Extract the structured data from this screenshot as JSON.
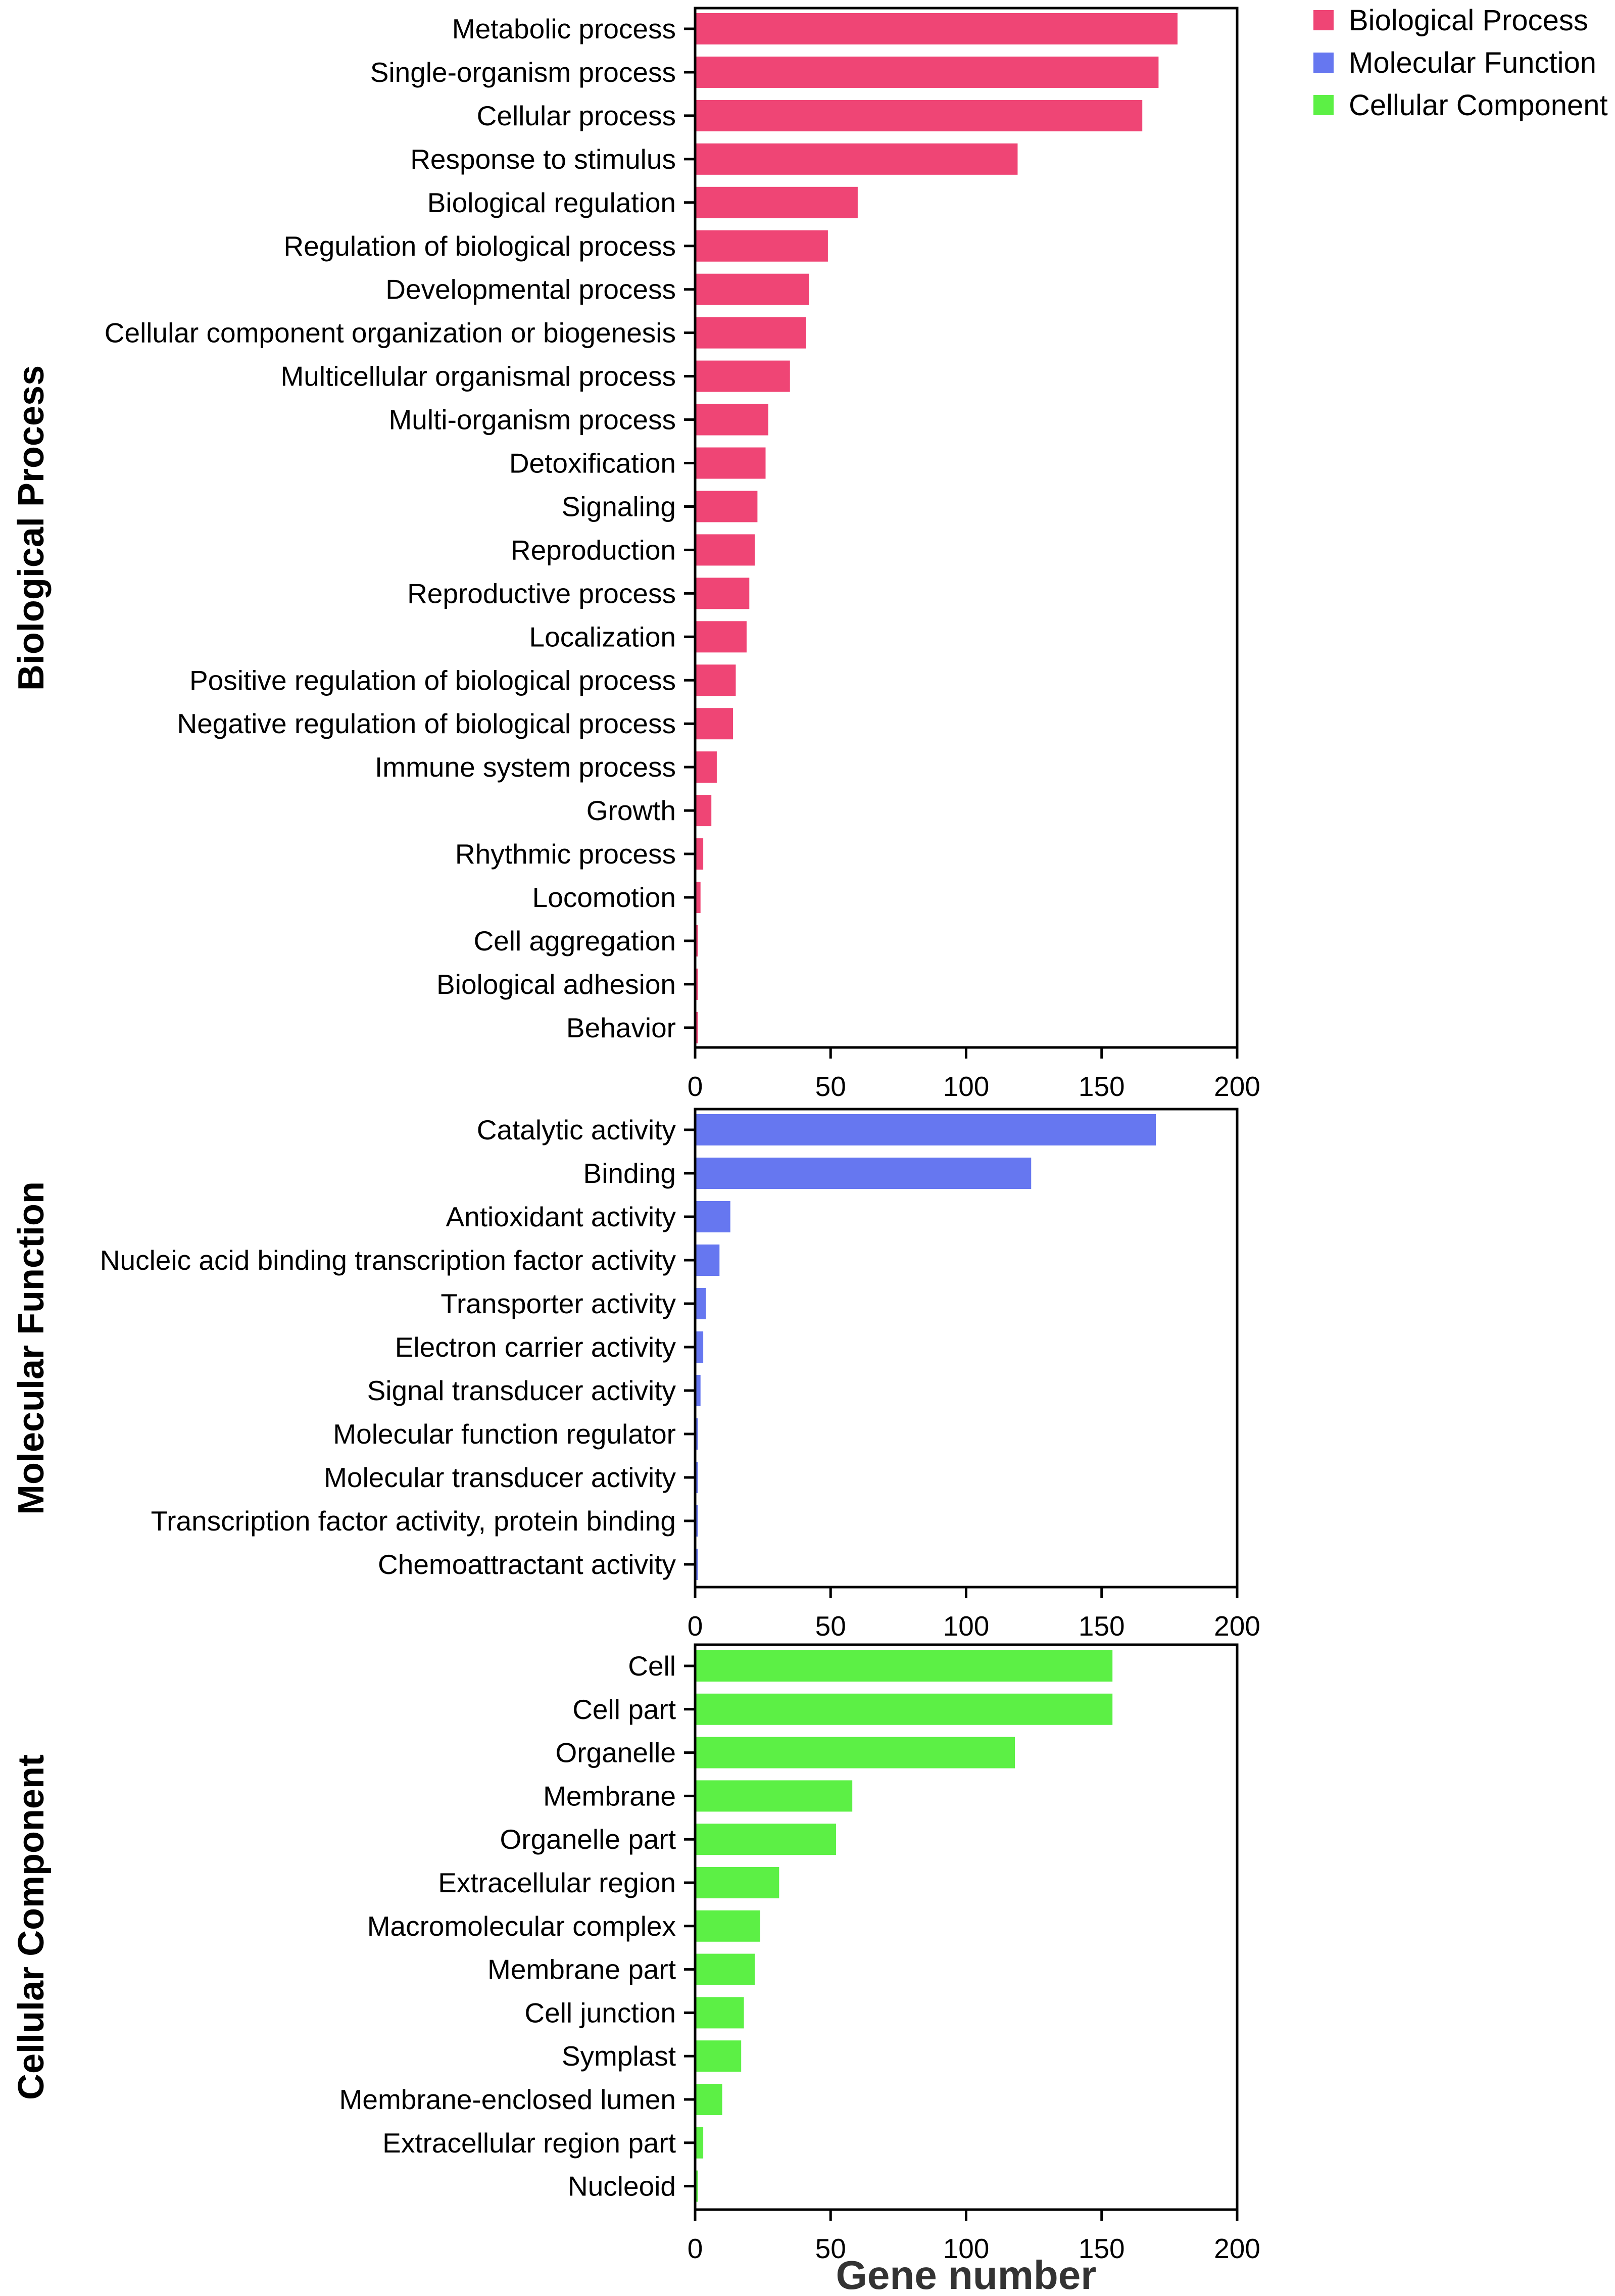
{
  "chart_data": {
    "type": "bar",
    "orientation": "horizontal",
    "xlabel": "Gene number",
    "xlim": [
      0,
      200
    ],
    "xticks": [
      0,
      50,
      100,
      150,
      200
    ],
    "legend": {
      "placement": "top-right",
      "entries": [
        {
          "name": "Biological Process",
          "color": "#ef4575"
        },
        {
          "name": "Molecular Function",
          "color": "#6677f0"
        },
        {
          "name": "Cellular Component",
          "color": "#5cf045"
        }
      ]
    },
    "panels": [
      {
        "name": "Biological Process",
        "color": "#ef4575",
        "categories": [
          "Metabolic process",
          "Single-organism process",
          "Cellular process",
          "Response to stimulus",
          "Biological regulation",
          "Regulation of biological process",
          "Developmental process",
          "Cellular component organization or biogenesis",
          "Multicellular organismal process",
          "Multi-organism process",
          "Detoxification",
          "Signaling",
          "Reproduction",
          "Reproductive process",
          "Localization",
          "Positive regulation of biological process",
          "Negative regulation of biological process",
          "Immune system process",
          "Growth",
          "Rhythmic process",
          "Locomotion",
          "Cell aggregation",
          "Biological adhesion",
          "Behavior"
        ],
        "values": [
          178,
          171,
          165,
          119,
          60,
          49,
          42,
          41,
          35,
          27,
          26,
          23,
          22,
          20,
          19,
          15,
          14,
          8,
          6,
          3,
          2,
          1,
          1,
          1
        ]
      },
      {
        "name": "Molecular Function",
        "color": "#6677f0",
        "categories": [
          "Catalytic activity",
          "Binding",
          "Antioxidant activity",
          "Nucleic acid binding transcription factor activity",
          "Transporter activity",
          "Electron carrier activity",
          "Signal transducer activity",
          "Molecular function regulator",
          "Molecular transducer activity",
          "Transcription factor activity, protein binding",
          "Chemoattractant activity"
        ],
        "values": [
          170,
          124,
          13,
          9,
          4,
          3,
          2,
          1,
          1,
          1,
          1
        ]
      },
      {
        "name": "Cellular Component",
        "color": "#5cf045",
        "categories": [
          "Cell",
          "Cell part",
          "Organelle",
          "Membrane",
          "Organelle part",
          "Extracellular region",
          "Macromolecular complex",
          "Membrane part",
          "Cell junction",
          "Symplast",
          "Membrane-enclosed lumen",
          "Extracellular region part",
          "Nucleoid"
        ],
        "values": [
          154,
          154,
          118,
          58,
          52,
          31,
          24,
          22,
          18,
          17,
          10,
          3,
          1
        ]
      }
    ]
  }
}
